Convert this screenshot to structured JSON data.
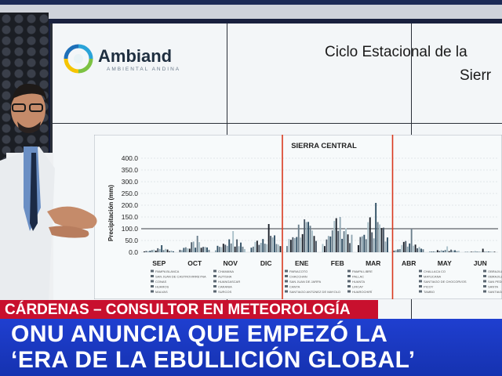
{
  "banner": {
    "name_line": "CÁRDENAS – CONSULTOR EN METEOROLOGÍA",
    "headline_line1": "ONU ANUNCIA QUE EMPEZÓ LA",
    "headline_line2": "‘ERA DE LA EBULLICIÓN GLOBAL’"
  },
  "slide": {
    "logo_name": "Ambiand",
    "logo_tagline": "AMBIENTAL ANDINA",
    "title_line1": "Ciclo Estacional de la",
    "title_line2": "Sierr"
  },
  "colors": {
    "banner_red": "#c8102e",
    "banner_blue": "#1f3fd0",
    "highlight_red": "#d9391f"
  },
  "chart_data": {
    "type": "bar",
    "title": "SIERRA CENTRAL",
    "ylabel": "Precipitación (mm)",
    "ylim": [
      0,
      400
    ],
    "yticks": [
      "0.0",
      "50.0",
      "100.0",
      "150.0",
      "200.0",
      "250.0",
      "300.0",
      "350.0",
      "400.0"
    ],
    "categories": [
      "SEP",
      "OCT",
      "NOV",
      "DIC",
      "ENE",
      "FEB",
      "MAR",
      "ABR",
      "MAY",
      "JUN"
    ],
    "highlight_range": [
      "ENE",
      "MAR"
    ],
    "monthly_profile": [
      {
        "month": "SEP",
        "typical": 10,
        "max": 30
      },
      {
        "month": "OCT",
        "typical": 25,
        "max": 70
      },
      {
        "month": "NOV",
        "typical": 35,
        "max": 90
      },
      {
        "month": "DIC",
        "typical": 50,
        "max": 120
      },
      {
        "month": "ENE",
        "typical": 80,
        "max": 140
      },
      {
        "month": "FEB",
        "typical": 95,
        "max": 150
      },
      {
        "month": "MAR",
        "typical": 90,
        "max": 210
      },
      {
        "month": "ABR",
        "typical": 30,
        "max": 100
      },
      {
        "month": "MAY",
        "typical": 8,
        "max": 25
      },
      {
        "month": "JUN",
        "typical": 3,
        "max": 15
      }
    ],
    "legend_groups": [
      [
        "PAMPA BLANCA",
        "SAN JUAN DE CASTROVIRREYNA",
        "CONAS",
        "HUAROS",
        "MALVAS"
      ],
      [
        "CHAMANA",
        "AUTISHA",
        "HUANGASCAR",
        "CARANIA",
        "SURCOS"
      ],
      [
        "PARIACOTO",
        "CHACCHAN",
        "SAN JUAN DE JARPA",
        "CANTA",
        "SANTIAGO ANTÚNEZ DE MAYOLO"
      ],
      [
        "PAMPA LIBRE",
        "PALLAC",
        "HUANTA",
        "LIRCAY",
        "HUAROCHIRÍ"
      ],
      [
        "CHALLACA CO",
        "MATUCANA",
        "SANTIAGO DE CHOCORVOS",
        "PICOY",
        "TAMBO"
      ],
      [
        "OBRAJILLO",
        "OBRAJILL",
        "SAN PEDRO",
        "SANTA",
        "SANTIAGO"
      ]
    ]
  }
}
